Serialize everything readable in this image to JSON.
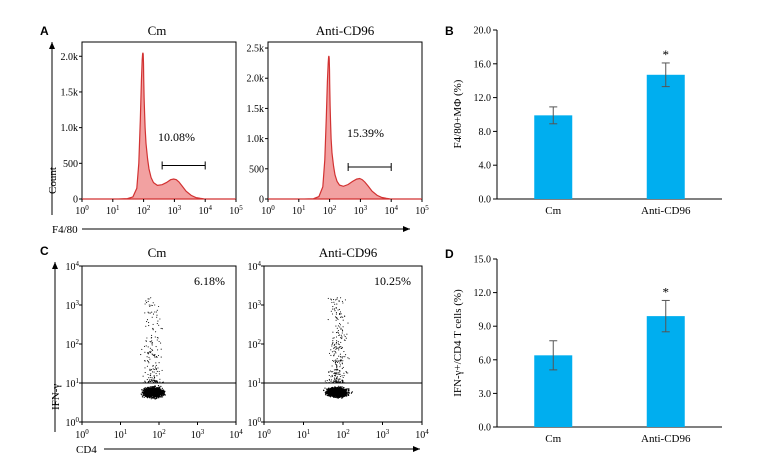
{
  "panels": {
    "A": {
      "letter": "A",
      "xlabel": "F4/80",
      "ylabel": "Count"
    },
    "B": {
      "letter": "B"
    },
    "C": {
      "letter": "C",
      "xlabel": "CD4",
      "ylabel": "IFN-γ"
    },
    "D": {
      "letter": "D"
    }
  },
  "chart_data": [
    {
      "id": "A1",
      "type": "area",
      "title": "Cm",
      "xscale": "log",
      "xlim": [
        1,
        100000
      ],
      "xticks": [
        "10",
        "10",
        "10",
        "10",
        "10",
        "10"
      ],
      "xtick_exp": [
        "0",
        "1",
        "2",
        "3",
        "4",
        "5"
      ],
      "ylim": [
        0,
        2200
      ],
      "yticks": [
        "0",
        "500",
        "1.0k",
        "1.5k",
        "2.0k"
      ],
      "ytick_values": [
        0,
        500,
        1000,
        1500,
        2000
      ],
      "gate_label": "10.08%",
      "gate_range": [
        400,
        10000
      ],
      "gate_level": 470,
      "x": [
        1,
        5,
        15,
        30,
        45,
        60,
        70,
        78,
        85,
        90,
        93,
        95,
        97,
        99,
        101,
        104,
        108,
        112,
        120,
        135,
        150,
        175,
        210,
        280,
        400,
        550,
        750,
        950,
        1150,
        1400,
        1800,
        2400,
        3500,
        5000,
        7000,
        9000,
        12000,
        20000,
        100000
      ],
      "y": [
        0,
        0,
        0,
        5,
        30,
        150,
        500,
        1100,
        1650,
        1950,
        2030,
        2050,
        2030,
        1900,
        1700,
        1420,
        1200,
        1000,
        780,
        560,
        420,
        300,
        230,
        190,
        200,
        230,
        270,
        280,
        270,
        240,
        180,
        110,
        50,
        20,
        8,
        3,
        0,
        0,
        0
      ]
    },
    {
      "id": "A2",
      "type": "area",
      "title": "Anti-CD96",
      "xscale": "log",
      "xlim": [
        1,
        100000
      ],
      "xticks": [
        "10",
        "10",
        "10",
        "10",
        "10",
        "10"
      ],
      "xtick_exp": [
        "0",
        "1",
        "2",
        "3",
        "4",
        "5"
      ],
      "ylim": [
        0,
        2600
      ],
      "yticks": [
        "0",
        "500",
        "1.0k",
        "1.5k",
        "2.0k",
        "2.5k"
      ],
      "ytick_values": [
        0,
        500,
        1000,
        1500,
        2000,
        2500
      ],
      "gate_label": "15.39%",
      "gate_range": [
        400,
        10000
      ],
      "gate_level": 530,
      "x": [
        1,
        5,
        15,
        30,
        45,
        60,
        70,
        78,
        85,
        90,
        93,
        95,
        97,
        99,
        101,
        104,
        108,
        112,
        120,
        135,
        150,
        175,
        210,
        280,
        400,
        550,
        750,
        950,
        1150,
        1400,
        1800,
        2400,
        3500,
        5000,
        7000,
        9000,
        12000,
        20000,
        100000
      ],
      "y": [
        0,
        0,
        0,
        5,
        40,
        200,
        650,
        1350,
        1950,
        2250,
        2350,
        2370,
        2330,
        2150,
        1900,
        1550,
        1250,
        1000,
        760,
        540,
        400,
        290,
        230,
        210,
        240,
        290,
        330,
        340,
        320,
        280,
        210,
        130,
        60,
        25,
        10,
        3,
        0,
        0,
        0
      ]
    },
    {
      "id": "B",
      "type": "bar",
      "categories": [
        "Cm",
        "Anti-CD96"
      ],
      "values": [
        9.9,
        14.7
      ],
      "errors": [
        1.0,
        1.4
      ],
      "significance": [
        "",
        "*"
      ],
      "ylabel": "F4/80+MΦ (%)",
      "ylim": [
        0,
        20
      ],
      "yticks": [
        "0.0",
        "4.0",
        "8.0",
        "12.0",
        "16.0",
        "20.0"
      ],
      "ytick_values": [
        0,
        4,
        8,
        12,
        16,
        20
      ],
      "color": "#00aeef"
    },
    {
      "id": "C1",
      "type": "scatter",
      "title": "Cm",
      "xscale": "log",
      "yscale": "log",
      "xlim": [
        1,
        10000
      ],
      "ylim": [
        1,
        10000
      ],
      "tick_base": "10",
      "tick_exp": [
        "0",
        "1",
        "2",
        "3",
        "4"
      ],
      "quadrant_line": 10,
      "quadrant_label": "6.18%"
    },
    {
      "id": "C2",
      "type": "scatter",
      "title": "Anti-CD96",
      "xscale": "log",
      "yscale": "log",
      "xlim": [
        1,
        10000
      ],
      "ylim": [
        1,
        10000
      ],
      "tick_base": "10",
      "tick_exp": [
        "0",
        "1",
        "2",
        "3",
        "4"
      ],
      "quadrant_line": 10,
      "quadrant_label": "10.25%"
    },
    {
      "id": "D",
      "type": "bar",
      "categories": [
        "Cm",
        "Anti-CD96"
      ],
      "values": [
        6.4,
        9.9
      ],
      "errors": [
        1.3,
        1.4
      ],
      "significance": [
        "",
        "*"
      ],
      "ylabel": "IFN-γ+/CD4 T cells (%)",
      "ylim": [
        0,
        15
      ],
      "yticks": [
        "0.0",
        "3.0",
        "6.0",
        "9.0",
        "12.0",
        "15.0"
      ],
      "ytick_values": [
        0,
        3,
        6,
        9,
        12,
        15
      ],
      "color": "#00aeef"
    }
  ]
}
